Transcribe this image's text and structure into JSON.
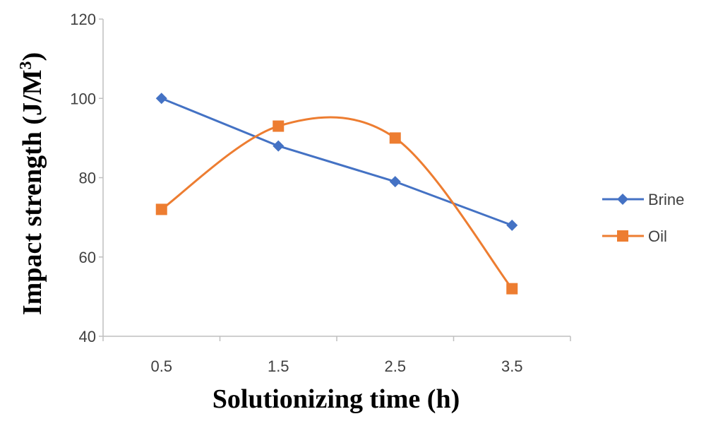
{
  "chart_data": {
    "type": "line",
    "title": "",
    "xlabel": "Solutionizing time (h)",
    "ylabel": "Impact strength (J/M",
    "ylabel_superscript": "3",
    "ylabel_close": ")",
    "categories": [
      "0.5",
      "1.5",
      "2.5",
      "3.5"
    ],
    "y_ticks": [
      "40",
      "60",
      "80",
      "100",
      "120"
    ],
    "ylim": [
      40,
      120
    ],
    "grid": false,
    "legend_position": "right",
    "series": [
      {
        "name": "Brine",
        "values": [
          100,
          88,
          79,
          68
        ],
        "color": "#4472C4",
        "marker": "diamond",
        "smooth": false
      },
      {
        "name": "Oil",
        "values": [
          72,
          93,
          90,
          52
        ],
        "color": "#ED7D31",
        "marker": "square",
        "smooth": true
      }
    ]
  }
}
